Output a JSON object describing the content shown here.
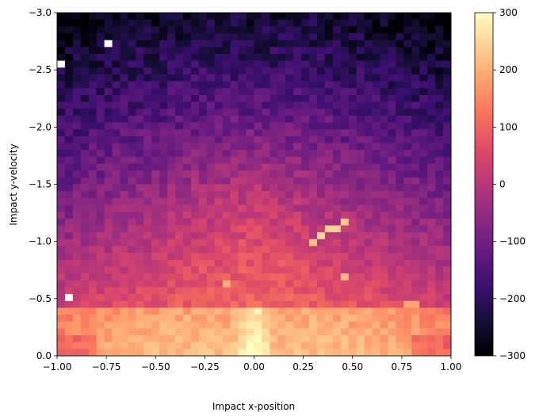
{
  "chart_data": {
    "type": "heatmap",
    "title": "",
    "xlabel": "Impact x-position",
    "ylabel": "Impact y-velocity",
    "xlim": [
      -1.0,
      1.0
    ],
    "ylim": [
      0.0,
      -3.0
    ],
    "y_axis_inverted": true,
    "grid": false,
    "colormap": "magma",
    "bins": {
      "x": 50,
      "y": 50
    },
    "colorbar": {
      "range": [
        -300,
        300
      ],
      "ticks": [
        -300,
        -200,
        -100,
        0,
        100,
        200,
        300
      ],
      "tick_labels": [
        "−300",
        "−200",
        "−100",
        "0",
        "100",
        "200",
        "300"
      ]
    },
    "x_ticks": [
      -1.0,
      -0.75,
      -0.5,
      -0.25,
      0.0,
      0.25,
      0.5,
      0.75,
      1.0
    ],
    "x_tick_labels": [
      "−1.00",
      "−0.75",
      "−0.50",
      "−0.25",
      "0.00",
      "0.25",
      "0.50",
      "0.75",
      "1.00"
    ],
    "y_ticks": [
      -3.0,
      -2.5,
      -2.0,
      -1.5,
      -1.0,
      -0.5,
      0.0
    ],
    "y_tick_labels": [
      "−3.0",
      "−2.5",
      "−2.0",
      "−1.5",
      "−1.0",
      "−0.5",
      "0.0"
    ],
    "value_field": {
      "description_of_shape": "values near +300 in a dome around x=0 for y-velocity between 0 and -0.45; warm ~+100..+250 band near y=0 across x; values decrease toward -300 as y-velocity approaches -3; empty bins at corners",
      "hotspot_cells": [
        {
          "x": 0.35,
          "y": -1.05,
          "value": 250
        },
        {
          "x": 0.4,
          "y": -1.1,
          "value": 240
        },
        {
          "x": 0.45,
          "y": -1.15,
          "value": 230
        },
        {
          "x": 0.3,
          "y": -1.0,
          "value": 220
        },
        {
          "x": -0.15,
          "y": -0.65,
          "value": 200
        },
        {
          "x": 0.45,
          "y": -0.7,
          "value": 210
        },
        {
          "x": 0.8,
          "y": -0.45,
          "value": 190
        }
      ],
      "empty_cells": [
        {
          "x": -0.74,
          "y": -2.75
        },
        {
          "x": -0.98,
          "y": -2.55
        },
        {
          "x": -0.93,
          "y": -0.52
        }
      ]
    }
  }
}
